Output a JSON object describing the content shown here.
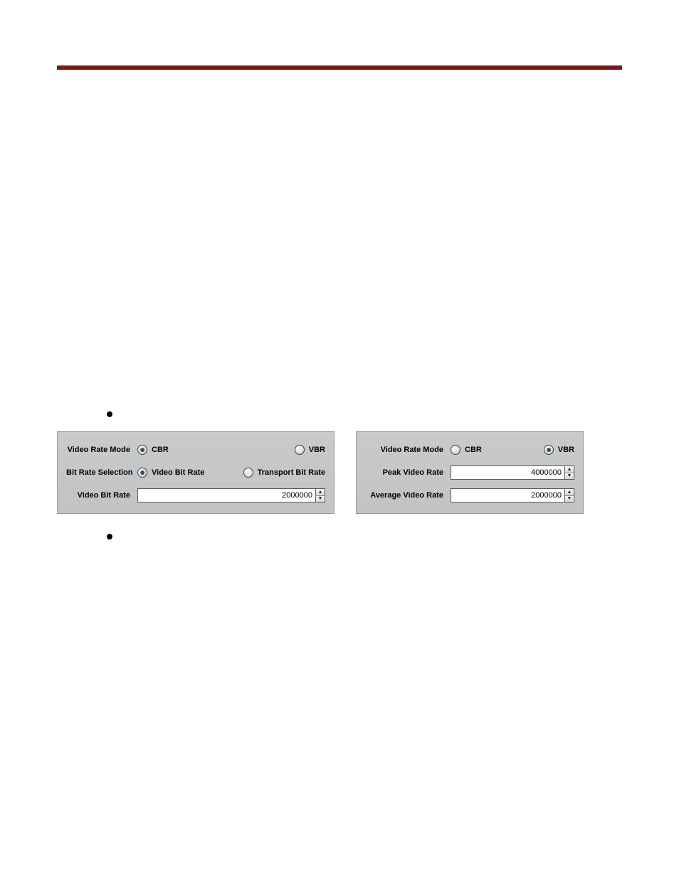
{
  "colors": {
    "rule": "#7a1818",
    "panel_bg_top": "#c9cacb",
    "panel_bg_bottom": "#c2c3c4",
    "panel_border": "#9a9b9c",
    "text": "#000000",
    "input_border": "#5a5a5a",
    "radio_dot": "#1a2a32"
  },
  "bullets": {
    "top": "",
    "bottom": ""
  },
  "left_panel": {
    "video_rate_mode": {
      "label": "Video Rate Mode",
      "options": {
        "cbr": "CBR",
        "vbr": "VBR"
      },
      "selected": "cbr"
    },
    "bit_rate_selection": {
      "label": "Bit Rate Selection",
      "options": {
        "video": "Video Bit Rate",
        "transport": "Transport Bit Rate"
      },
      "selected": "video"
    },
    "video_bit_rate": {
      "label": "Video Bit Rate",
      "value": "2000000"
    }
  },
  "right_panel": {
    "video_rate_mode": {
      "label": "Video Rate Mode",
      "options": {
        "cbr": "CBR",
        "vbr": "VBR"
      },
      "selected": "vbr"
    },
    "peak_video_rate": {
      "label": "Peak Video Rate",
      "value": "4000000"
    },
    "average_video_rate": {
      "label": "Average Video Rate",
      "value": "2000000"
    }
  }
}
